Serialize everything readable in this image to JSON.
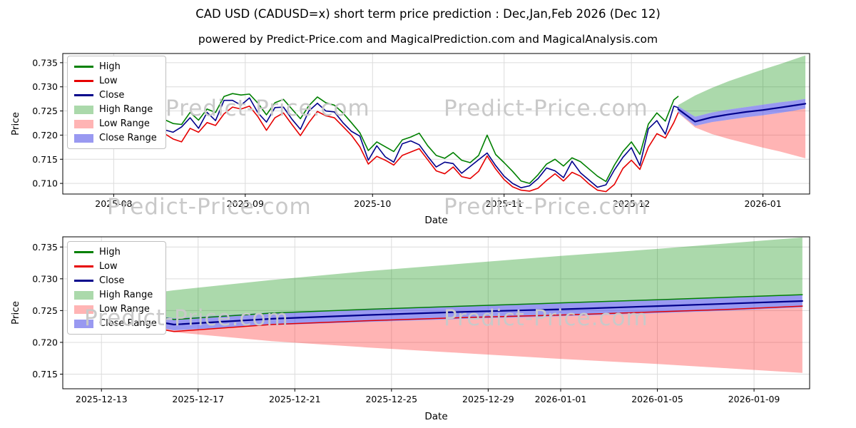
{
  "title": "CAD USD (CADUSD=x) short term price prediction : Dec,Jan,Feb 2026 (Dec 12)",
  "subtitle": "powered by Predict-Price.com and MagicalPrediction.com and MagicalAnalysis.com",
  "watermark": "Predict-Price.com",
  "colors": {
    "high": "#008000",
    "low": "#e60000",
    "close": "#00008b",
    "high_range": "rgba(0,140,0,0.33)",
    "low_range": "rgba(255,40,40,0.35)",
    "close_range": "rgba(70,70,230,0.55)",
    "grid": "#dcdcdc",
    "axis": "#000000"
  },
  "legend": {
    "items": [
      {
        "label": "High",
        "swatch": "line",
        "color": "#008000"
      },
      {
        "label": "Low",
        "swatch": "line",
        "color": "#e60000"
      },
      {
        "label": "Close",
        "swatch": "line",
        "color": "#00008b"
      },
      {
        "label": "High Range",
        "swatch": "patch",
        "color": "rgba(0,140,0,0.33)"
      },
      {
        "label": "Low Range",
        "swatch": "patch",
        "color": "rgba(255,40,40,0.35)"
      },
      {
        "label": "Close Range",
        "swatch": "patch",
        "color": "rgba(70,70,230,0.55)"
      }
    ]
  },
  "chart_data": [
    {
      "type": "line",
      "name": "full-history-with-forecast",
      "xlabel": "Date",
      "ylabel": "Price",
      "x_unit": "days since 2025-07-23",
      "xlim": [
        -3,
        173
      ],
      "ylim": [
        0.7078,
        0.7369
      ],
      "grid": true,
      "legend_position": "upper left",
      "x_ticks": [
        {
          "day": 9,
          "label": "2025-08"
        },
        {
          "day": 40,
          "label": "2025-09"
        },
        {
          "day": 70,
          "label": "2025-10"
        },
        {
          "day": 101,
          "label": "2025-11"
        },
        {
          "day": 131,
          "label": "2025-12"
        },
        {
          "day": 162,
          "label": "2026-01"
        }
      ],
      "y_ticks": [
        0.71,
        0.715,
        0.72,
        0.725,
        0.73,
        0.735
      ],
      "history": {
        "days": [
          0,
          2,
          4,
          6,
          9,
          11,
          13,
          15,
          17,
          19,
          21,
          23,
          25,
          27,
          29,
          31,
          33,
          35,
          37,
          39,
          41,
          43,
          45,
          47,
          49,
          51,
          53,
          55,
          57,
          59,
          61,
          63,
          65,
          67,
          69,
          71,
          73,
          75,
          77,
          79,
          81,
          83,
          85,
          87,
          89,
          91,
          93,
          95,
          97,
          99,
          101,
          103,
          105,
          107,
          109,
          111,
          113,
          115,
          117,
          119,
          121,
          123,
          125,
          127,
          129,
          131,
          133,
          135,
          137,
          139,
          141,
          142
        ],
        "high": [
          0.73,
          0.731,
          0.7293,
          0.7288,
          0.7262,
          0.7273,
          0.7257,
          0.7276,
          0.7269,
          0.7243,
          0.7232,
          0.7224,
          0.7222,
          0.7247,
          0.7231,
          0.7254,
          0.7247,
          0.728,
          0.7286,
          0.7283,
          0.7285,
          0.7266,
          0.7242,
          0.7267,
          0.7274,
          0.7254,
          0.7234,
          0.7261,
          0.7279,
          0.7267,
          0.7262,
          0.7246,
          0.7226,
          0.7205,
          0.7168,
          0.7186,
          0.7176,
          0.7166,
          0.719,
          0.7196,
          0.7204,
          0.7178,
          0.7158,
          0.7152,
          0.7164,
          0.7148,
          0.7143,
          0.7158,
          0.72,
          0.716,
          0.7143,
          0.7125,
          0.7105,
          0.71,
          0.7118,
          0.714,
          0.715,
          0.7136,
          0.7153,
          0.7145,
          0.713,
          0.7115,
          0.7104,
          0.7138,
          0.7166,
          0.7186,
          0.716,
          0.7223,
          0.7246,
          0.7229,
          0.7273,
          0.728
        ],
        "low": [
          0.7268,
          0.728,
          0.726,
          0.7262,
          0.7238,
          0.7246,
          0.7232,
          0.7244,
          0.7247,
          0.7218,
          0.7203,
          0.7192,
          0.7186,
          0.7214,
          0.7206,
          0.7226,
          0.722,
          0.7244,
          0.7258,
          0.7254,
          0.726,
          0.7238,
          0.721,
          0.7236,
          0.7246,
          0.7222,
          0.7199,
          0.7226,
          0.7249,
          0.724,
          0.7236,
          0.7218,
          0.72,
          0.7176,
          0.714,
          0.7156,
          0.7148,
          0.7138,
          0.7158,
          0.7165,
          0.7172,
          0.7149,
          0.7126,
          0.712,
          0.7134,
          0.7114,
          0.711,
          0.7125,
          0.7157,
          0.713,
          0.7108,
          0.7093,
          0.7086,
          0.7084,
          0.709,
          0.7106,
          0.712,
          0.7105,
          0.7123,
          0.7115,
          0.7099,
          0.7086,
          0.7083,
          0.7098,
          0.7131,
          0.7148,
          0.7129,
          0.7175,
          0.7203,
          0.7194,
          0.7226,
          0.7246
        ],
        "close": [
          0.7295,
          0.7288,
          0.7268,
          0.7283,
          0.725,
          0.7262,
          0.724,
          0.7268,
          0.7253,
          0.7226,
          0.7211,
          0.7206,
          0.7217,
          0.7236,
          0.7214,
          0.7247,
          0.723,
          0.7272,
          0.7272,
          0.7262,
          0.7277,
          0.7246,
          0.7227,
          0.7257,
          0.7258,
          0.7233,
          0.7212,
          0.725,
          0.7266,
          0.725,
          0.7248,
          0.7226,
          0.7208,
          0.7198,
          0.7148,
          0.7178,
          0.7155,
          0.7144,
          0.7182,
          0.7188,
          0.718,
          0.7156,
          0.7134,
          0.7144,
          0.7141,
          0.7121,
          0.7135,
          0.7149,
          0.7163,
          0.7137,
          0.7115,
          0.71,
          0.7091,
          0.7095,
          0.711,
          0.7132,
          0.7126,
          0.7112,
          0.7146,
          0.7122,
          0.7107,
          0.7092,
          0.7097,
          0.7128,
          0.7154,
          0.7174,
          0.7137,
          0.7213,
          0.723,
          0.7202,
          0.726,
          0.7257
        ]
      },
      "forecast": {
        "days": [
          142,
          146,
          150,
          154,
          158,
          162,
          166,
          169,
          172
        ],
        "high_range_top": [
          0.7262,
          0.7282,
          0.7298,
          0.7312,
          0.7324,
          0.7336,
          0.7347,
          0.7356,
          0.7365
        ],
        "close_range_top": [
          0.726,
          0.7238,
          0.7247,
          0.7253,
          0.7258,
          0.7263,
          0.7268,
          0.7271,
          0.7275
        ],
        "close": [
          0.7254,
          0.7228,
          0.7237,
          0.7243,
          0.7248,
          0.7252,
          0.7257,
          0.7261,
          0.7265
        ],
        "close_range_bottom": [
          0.7247,
          0.7219,
          0.7227,
          0.7232,
          0.7237,
          0.7241,
          0.7246,
          0.725,
          0.7255
        ],
        "low_range_bottom": [
          0.7246,
          0.7216,
          0.7202,
          0.7192,
          0.7183,
          0.7174,
          0.7166,
          0.7159,
          0.7152
        ]
      }
    },
    {
      "type": "line",
      "name": "forecast-zoom",
      "xlabel": "Date",
      "ylabel": "Price",
      "x_unit": "days since 2025-07-23",
      "xlim": [
        141.4,
        172.3
      ],
      "ylim": [
        0.7127,
        0.7366
      ],
      "grid": true,
      "legend_position": "upper left",
      "x_ticks": [
        {
          "day": 143,
          "label": "2025-12-13"
        },
        {
          "day": 147,
          "label": "2025-12-17"
        },
        {
          "day": 151,
          "label": "2025-12-21"
        },
        {
          "day": 155,
          "label": "2025-12-25"
        },
        {
          "day": 159,
          "label": "2025-12-29"
        },
        {
          "day": 162,
          "label": "2026-01-01"
        },
        {
          "day": 166,
          "label": "2026-01-05"
        },
        {
          "day": 170,
          "label": "2026-01-09"
        }
      ],
      "y_ticks": [
        0.715,
        0.72,
        0.725,
        0.73,
        0.735
      ],
      "forecast": {
        "days": [
          142,
          146,
          150,
          154,
          158,
          162,
          166,
          169,
          172
        ],
        "high_range_top": [
          0.7262,
          0.7282,
          0.7298,
          0.7312,
          0.7324,
          0.7336,
          0.7347,
          0.7356,
          0.7365
        ],
        "close_range_top": [
          0.726,
          0.7238,
          0.7247,
          0.7253,
          0.7258,
          0.7263,
          0.7268,
          0.7271,
          0.7275
        ],
        "high": [
          0.7262,
          0.7236,
          0.7246,
          0.7252,
          0.7257,
          0.7262,
          0.7267,
          0.7271,
          0.7275
        ],
        "close": [
          0.7254,
          0.7228,
          0.7237,
          0.7243,
          0.7248,
          0.7252,
          0.7257,
          0.7261,
          0.7265
        ],
        "low": [
          0.7243,
          0.7217,
          0.7228,
          0.7234,
          0.7239,
          0.7243,
          0.7248,
          0.7252,
          0.7257
        ],
        "close_range_bottom": [
          0.7247,
          0.7219,
          0.7227,
          0.7232,
          0.7237,
          0.7241,
          0.7246,
          0.725,
          0.7255
        ],
        "low_range_bottom": [
          0.7246,
          0.7216,
          0.7202,
          0.7192,
          0.7183,
          0.7174,
          0.7166,
          0.7159,
          0.7152
        ]
      }
    }
  ]
}
